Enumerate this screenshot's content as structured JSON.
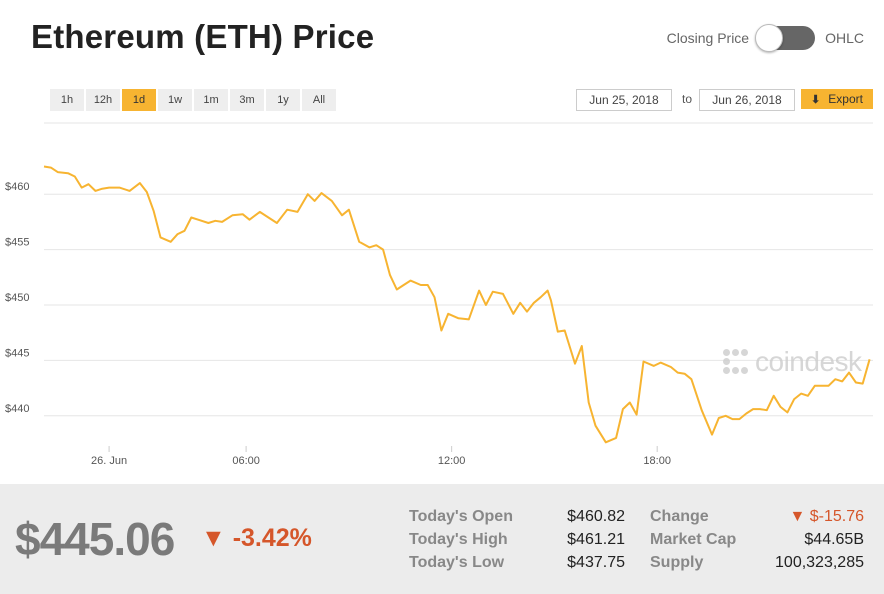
{
  "header": {
    "title": "Ethereum (ETH) Price",
    "toggle_left": "Closing Price",
    "toggle_right": "OHLC"
  },
  "controls": {
    "ranges": [
      "1h",
      "12h",
      "1d",
      "1w",
      "1m",
      "3m",
      "1y",
      "All"
    ],
    "active_range": "1d",
    "date_from": "Jun 25, 2018",
    "date_to_label": "to",
    "date_to": "Jun 26, 2018",
    "export_label": "Export"
  },
  "watermark": "coindesk",
  "colors": {
    "line": "#f7b431",
    "accent": "#f7b431",
    "negative": "#d5562a"
  },
  "chart_data": {
    "type": "line",
    "xlabel": "",
    "ylabel": "",
    "x_ticks": [
      {
        "label": "26. Jun",
        "hour": 2
      },
      {
        "label": "06:00",
        "hour": 6
      },
      {
        "label": "12:00",
        "hour": 12
      },
      {
        "label": "18:00",
        "hour": 18
      }
    ],
    "y_ticks": [
      {
        "label": "$460",
        "value": 460
      },
      {
        "label": "$455",
        "value": 455
      },
      {
        "label": "$450",
        "value": 450
      },
      {
        "label": "$445",
        "value": 445
      },
      {
        "label": "$440",
        "value": 440
      }
    ],
    "xlim": [
      0.1,
      24.3
    ],
    "ylim": [
      434.2,
      466.7
    ],
    "grid": true,
    "series": [
      {
        "x": [
          0.1,
          0.3,
          0.5,
          0.8,
          1.0,
          1.2,
          1.4,
          1.6,
          1.8,
          2.0,
          2.3,
          2.6,
          2.9,
          3.1,
          3.3,
          3.5,
          3.8,
          4.0,
          4.2,
          4.4,
          4.6,
          4.9,
          5.1,
          5.3,
          5.6,
          5.9,
          6.1,
          6.4,
          6.6,
          6.9,
          7.2,
          7.5,
          7.8,
          8.0,
          8.2,
          8.5,
          8.8,
          9.0,
          9.3,
          9.6,
          9.8,
          10.0,
          10.2,
          10.4,
          10.6,
          10.8,
          11.1,
          11.3,
          11.5,
          11.7,
          11.9,
          12.2,
          12.5,
          12.8,
          13.0,
          13.2,
          13.5,
          13.8,
          14.0,
          14.2,
          14.4,
          14.6,
          14.8,
          14.9,
          15.1,
          15.3,
          15.6,
          15.8,
          16.0,
          16.2,
          16.5,
          16.8,
          17.0,
          17.2,
          17.4,
          17.6,
          17.9,
          18.1,
          18.4,
          18.6,
          18.8,
          19.0,
          19.3,
          19.6,
          19.8,
          20.0,
          20.2,
          20.4,
          20.6,
          20.8,
          21.0,
          21.2,
          21.4,
          21.6,
          21.8,
          22.0,
          22.2,
          22.4,
          22.6,
          22.8,
          23.0,
          23.2,
          23.4,
          23.6,
          23.8,
          24.0,
          24.2
        ],
        "values": [
          462.5,
          462.4,
          462.0,
          461.9,
          461.6,
          460.6,
          460.9,
          460.3,
          460.5,
          460.6,
          460.6,
          460.3,
          461.0,
          460.2,
          458.5,
          456.1,
          455.7,
          456.4,
          456.7,
          457.9,
          457.7,
          457.4,
          457.6,
          457.5,
          458.1,
          458.2,
          457.7,
          458.4,
          458.0,
          457.4,
          458.6,
          458.4,
          460.0,
          459.4,
          460.1,
          459.4,
          458.1,
          458.6,
          455.7,
          455.2,
          455.4,
          455.0,
          452.7,
          451.4,
          451.8,
          452.2,
          451.8,
          451.8,
          450.7,
          447.7,
          449.2,
          448.8,
          448.7,
          451.3,
          450.0,
          451.2,
          451.0,
          449.2,
          450.2,
          449.4,
          450.2,
          450.7,
          451.3,
          450.4,
          447.6,
          447.7,
          444.7,
          446.3,
          441.2,
          439.1,
          437.6,
          438.0,
          440.6,
          441.2,
          440.1,
          444.9,
          444.5,
          444.8,
          444.4,
          443.9,
          443.8,
          443.3,
          440.5,
          438.3,
          439.8,
          440.0,
          439.7,
          439.7,
          440.2,
          440.6,
          440.6,
          440.5,
          441.8,
          440.8,
          440.3,
          441.5,
          442.0,
          441.8,
          442.7,
          442.7,
          442.7,
          443.3,
          443.1,
          443.9,
          443.0,
          442.9,
          445.1
        ]
      }
    ]
  },
  "stats": {
    "price": "$445.06",
    "change_pct": "-3.42%",
    "change_arrow": "▼",
    "rows_left": [
      {
        "label": "Today's Open",
        "value": "$460.82"
      },
      {
        "label": "Today's High",
        "value": "$461.21"
      },
      {
        "label": "Today's Low",
        "value": "$437.75"
      }
    ],
    "rows_right": [
      {
        "label": "Change",
        "value": "▼ $-15.76"
      },
      {
        "label": "Market Cap",
        "value": "$44.65B"
      },
      {
        "label": "Supply",
        "value": "100,323,285"
      }
    ]
  }
}
